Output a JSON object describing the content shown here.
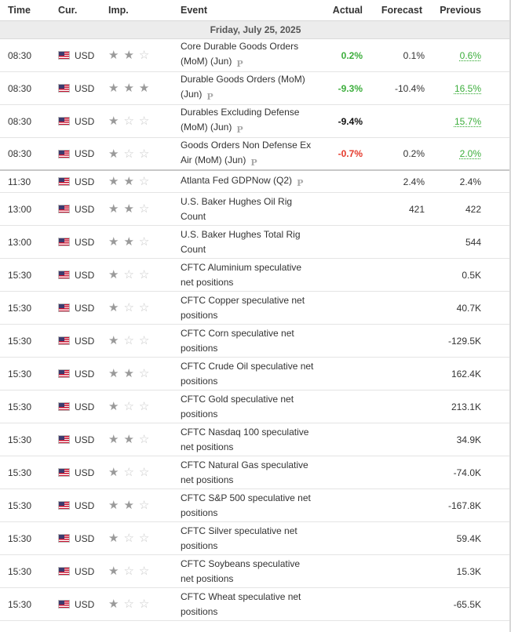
{
  "header": {
    "time": "Time",
    "currency": "Cur.",
    "importance": "Imp.",
    "event": "Event",
    "actual": "Actual",
    "forecast": "Forecast",
    "previous": "Previous"
  },
  "date_label": "Friday, July 25, 2025",
  "colors": {
    "positive": "#3cae3c",
    "negative": "#e5392b"
  },
  "events": [
    {
      "time": "08:30",
      "currency": "USD",
      "importance": 2,
      "event": "Core Durable Goods Orders (MoM) (Jun)",
      "preliminary": "P",
      "actual": "0.2%",
      "actual_color": "green",
      "forecast": "0.1%",
      "previous": "0.6%",
      "previous_revised": true
    },
    {
      "time": "08:30",
      "currency": "USD",
      "importance": 3,
      "event": "Durable Goods Orders (MoM) (Jun)",
      "preliminary": "P",
      "actual": "-9.3%",
      "actual_color": "green",
      "forecast": "-10.4%",
      "previous": "16.5%",
      "previous_revised": true
    },
    {
      "time": "08:30",
      "currency": "USD",
      "importance": 1,
      "event": "Durables Excluding Defense (MoM) (Jun)",
      "preliminary": "P",
      "actual": "-9.4%",
      "actual_color": "black",
      "forecast": "",
      "previous": "15.7%",
      "previous_revised": true
    },
    {
      "time": "08:30",
      "currency": "USD",
      "importance": 1,
      "event": "Goods Orders Non Defense Ex Air (MoM) (Jun)",
      "preliminary": "P",
      "actual": "-0.7%",
      "actual_color": "red",
      "forecast": "0.2%",
      "previous": "2.0%",
      "previous_revised": true
    },
    {
      "time": "11:30",
      "currency": "USD",
      "importance": 2,
      "event": "Atlanta Fed GDPNow (Q2)",
      "preliminary": "P",
      "actual": "",
      "actual_color": "black",
      "forecast": "2.4%",
      "previous": "2.4%",
      "previous_revised": false
    },
    {
      "time": "13:00",
      "currency": "USD",
      "importance": 2,
      "event": "U.S. Baker Hughes Oil Rig Count",
      "preliminary": "",
      "actual": "",
      "actual_color": "black",
      "forecast": "421",
      "previous": "422",
      "previous_revised": false
    },
    {
      "time": "13:00",
      "currency": "USD",
      "importance": 2,
      "event": "U.S. Baker Hughes Total Rig Count",
      "preliminary": "",
      "actual": "",
      "actual_color": "black",
      "forecast": "",
      "previous": "544",
      "previous_revised": false
    },
    {
      "time": "15:30",
      "currency": "USD",
      "importance": 1,
      "event": "CFTC Aluminium speculative net positions",
      "preliminary": "",
      "actual": "",
      "actual_color": "black",
      "forecast": "",
      "previous": "0.5K",
      "previous_revised": false
    },
    {
      "time": "15:30",
      "currency": "USD",
      "importance": 1,
      "event": "CFTC Copper speculative net positions",
      "preliminary": "",
      "actual": "",
      "actual_color": "black",
      "forecast": "",
      "previous": "40.7K",
      "previous_revised": false
    },
    {
      "time": "15:30",
      "currency": "USD",
      "importance": 1,
      "event": "CFTC Corn speculative net positions",
      "preliminary": "",
      "actual": "",
      "actual_color": "black",
      "forecast": "",
      "previous": "-129.5K",
      "previous_revised": false
    },
    {
      "time": "15:30",
      "currency": "USD",
      "importance": 2,
      "event": "CFTC Crude Oil speculative net positions",
      "preliminary": "",
      "actual": "",
      "actual_color": "black",
      "forecast": "",
      "previous": "162.4K",
      "previous_revised": false
    },
    {
      "time": "15:30",
      "currency": "USD",
      "importance": 1,
      "event": "CFTC Gold speculative net positions",
      "preliminary": "",
      "actual": "",
      "actual_color": "black",
      "forecast": "",
      "previous": "213.1K",
      "previous_revised": false
    },
    {
      "time": "15:30",
      "currency": "USD",
      "importance": 2,
      "event": "CFTC Nasdaq 100 speculative net positions",
      "preliminary": "",
      "actual": "",
      "actual_color": "black",
      "forecast": "",
      "previous": "34.9K",
      "previous_revised": false
    },
    {
      "time": "15:30",
      "currency": "USD",
      "importance": 1,
      "event": "CFTC Natural Gas speculative net positions",
      "preliminary": "",
      "actual": "",
      "actual_color": "black",
      "forecast": "",
      "previous": "-74.0K",
      "previous_revised": false
    },
    {
      "time": "15:30",
      "currency": "USD",
      "importance": 2,
      "event": "CFTC S&P 500 speculative net positions",
      "preliminary": "",
      "actual": "",
      "actual_color": "black",
      "forecast": "",
      "previous": "-167.8K",
      "previous_revised": false
    },
    {
      "time": "15:30",
      "currency": "USD",
      "importance": 1,
      "event": "CFTC Silver speculative net positions",
      "preliminary": "",
      "actual": "",
      "actual_color": "black",
      "forecast": "",
      "previous": "59.4K",
      "previous_revised": false
    },
    {
      "time": "15:30",
      "currency": "USD",
      "importance": 1,
      "event": "CFTC Soybeans speculative net positions",
      "preliminary": "",
      "actual": "",
      "actual_color": "black",
      "forecast": "",
      "previous": "15.3K",
      "previous_revised": false
    },
    {
      "time": "15:30",
      "currency": "USD",
      "importance": 1,
      "event": "CFTC Wheat speculative net positions",
      "preliminary": "",
      "actual": "",
      "actual_color": "black",
      "forecast": "",
      "previous": "-65.5K",
      "previous_revised": false
    }
  ]
}
